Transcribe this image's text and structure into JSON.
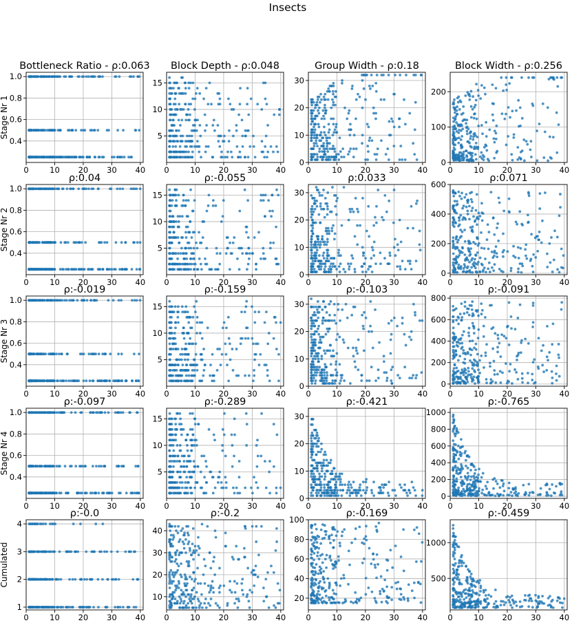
{
  "figure": {
    "suptitle": "Insects",
    "point_color": "#1f77b4"
  },
  "chart_data": {
    "type": "scatter",
    "note_x_axis": "shared x axis across all 20 panels; x values unlabeled on the figure",
    "columns": [
      "Bottleneck Ratio",
      "Block Depth",
      "Group Width",
      "Block Width"
    ],
    "rows": [
      "Stage Nr 1",
      "Stage Nr 2",
      "Stage Nr 3",
      "Stage Nr 4",
      "Cumulated"
    ],
    "xlim": [
      0,
      41
    ],
    "xticks": [
      0,
      10,
      20,
      30,
      40
    ],
    "panels": [
      {
        "title": "Bottleneck Ratio - ρ:0.063",
        "ylabel": "Stage Nr 1",
        "ylim": [
          0.2,
          1.04
        ],
        "yticks": [
          0.4,
          0.6,
          0.8,
          1.0
        ],
        "ytick_labels": [
          "0.4",
          "0.6",
          "0.8",
          "1.0"
        ],
        "ylevels": [
          0.25,
          0.5,
          1.0
        ],
        "rho": 0.063
      },
      {
        "title": "Block Depth - ρ:0.048",
        "ylabel": "",
        "ylim": [
          0,
          17
        ],
        "yticks": [
          5,
          10,
          15
        ],
        "ytick_labels": [
          "5",
          "10",
          "15"
        ],
        "ymin_data": 1,
        "ymax_data": 16,
        "rho": 0.048
      },
      {
        "title": "Group Width - ρ:0.18",
        "ylabel": "",
        "ylim": [
          0,
          33
        ],
        "yticks": [
          0,
          10,
          20,
          30
        ],
        "ytick_labels": [
          "0",
          "10",
          "20",
          "30"
        ],
        "ymin_data": 1,
        "ymax_data": 32,
        "rho": 0.18
      },
      {
        "title": "Block Width - ρ:0.256",
        "ylabel": "",
        "ylim": [
          0,
          255
        ],
        "yticks": [
          0,
          100,
          200
        ],
        "ytick_labels": [
          "0",
          "100",
          "200"
        ],
        "ymin_data": 5,
        "ymax_data": 240,
        "rho": 0.256
      },
      {
        "title": "ρ:0.04",
        "ylabel": "Stage Nr 2",
        "ylim": [
          0.2,
          1.04
        ],
        "yticks": [
          0.4,
          0.6,
          0.8,
          1.0
        ],
        "ytick_labels": [
          "0.4",
          "0.6",
          "0.8",
          "1.0"
        ],
        "ylevels": [
          0.25,
          0.5,
          1.0
        ],
        "rho": 0.04
      },
      {
        "title": "ρ:-0.055",
        "ylabel": "",
        "ylim": [
          0,
          17
        ],
        "yticks": [
          5,
          10,
          15
        ],
        "ytick_labels": [
          "5",
          "10",
          "15"
        ],
        "ymin_data": 1,
        "ymax_data": 16,
        "rho": -0.055
      },
      {
        "title": "ρ:0.033",
        "ylabel": "",
        "ylim": [
          0,
          33
        ],
        "yticks": [
          0,
          10,
          20,
          30
        ],
        "ytick_labels": [
          "0",
          "10",
          "20",
          "30"
        ],
        "ymin_data": 1,
        "ymax_data": 32,
        "rho": 0.033
      },
      {
        "title": "ρ:0.071",
        "ylabel": "",
        "ylim": [
          -10,
          600
        ],
        "yticks": [
          0,
          200,
          400,
          600
        ],
        "ytick_labels": [
          "0",
          "200",
          "400",
          "600"
        ],
        "ymin_data": 5,
        "ymax_data": 560,
        "rho": 0.071
      },
      {
        "title": "ρ:-0.019",
        "ylabel": "Stage Nr 3",
        "ylim": [
          0.2,
          1.04
        ],
        "yticks": [
          0.4,
          0.6,
          0.8,
          1.0
        ],
        "ytick_labels": [
          "0.4",
          "0.6",
          "0.8",
          "1.0"
        ],
        "ylevels": [
          0.25,
          0.5,
          1.0
        ],
        "rho": -0.019
      },
      {
        "title": "ρ:-0.159",
        "ylabel": "",
        "ylim": [
          0,
          17
        ],
        "yticks": [
          5,
          10,
          15
        ],
        "ytick_labels": [
          "5",
          "10",
          "15"
        ],
        "ymin_data": 1,
        "ymax_data": 16,
        "rho": -0.159
      },
      {
        "title": "ρ:-0.103",
        "ylabel": "",
        "ylim": [
          0,
          33
        ],
        "yticks": [
          0,
          10,
          20,
          30
        ],
        "ytick_labels": [
          "0",
          "10",
          "20",
          "30"
        ],
        "ymin_data": 1,
        "ymax_data": 32,
        "rho": -0.103
      },
      {
        "title": "ρ:-0.091",
        "ylabel": "",
        "ylim": [
          -20,
          820
        ],
        "yticks": [
          0,
          200,
          400,
          600,
          800
        ],
        "ytick_labels": [
          "0",
          "200",
          "400",
          "600",
          "800"
        ],
        "ymin_data": 5,
        "ymax_data": 780,
        "rho": -0.091
      },
      {
        "title": "ρ:-0.097",
        "ylabel": "Stage Nr 4",
        "ylim": [
          0.2,
          1.04
        ],
        "yticks": [
          0.4,
          0.6,
          0.8,
          1.0
        ],
        "ytick_labels": [
          "0.4",
          "0.6",
          "0.8",
          "1.0"
        ],
        "ylevels": [
          0.25,
          0.5,
          1.0
        ],
        "rho": -0.097
      },
      {
        "title": "ρ:-0.289",
        "ylabel": "",
        "ylim": [
          0,
          17
        ],
        "yticks": [
          5,
          10,
          15
        ],
        "ytick_labels": [
          "5",
          "10",
          "15"
        ],
        "ymin_data": 1,
        "ymax_data": 16,
        "rho": -0.289
      },
      {
        "title": "ρ:-0.421",
        "ylabel": "",
        "ylim": [
          0,
          33
        ],
        "yticks": [
          0,
          10,
          20,
          30
        ],
        "ytick_labels": [
          "0",
          "10",
          "20",
          "30"
        ],
        "ymin_data": 1,
        "ymax_data": 32,
        "rho": -0.421
      },
      {
        "title": "ρ:-0.765",
        "ylabel": "",
        "ylim": [
          -25,
          1050
        ],
        "yticks": [
          0,
          200,
          400,
          600,
          800,
          1000
        ],
        "ytick_labels": [
          "0",
          "200",
          "400",
          "600",
          "800",
          "1000"
        ],
        "ymin_data": 5,
        "ymax_data": 1010,
        "rho": -0.765
      },
      {
        "title": "ρ:-0.0",
        "ylabel": "Cumulated",
        "ylim": [
          0.9,
          4.15
        ],
        "yticks": [
          1,
          2,
          3,
          4
        ],
        "ytick_labels": [
          "1",
          "2",
          "3",
          "4"
        ],
        "ymin_data": 1,
        "ymax_data": 4,
        "rho": 0.0
      },
      {
        "title": "ρ:-0.2",
        "ylabel": "",
        "ylim": [
          4,
          45
        ],
        "yticks": [
          10,
          20,
          30,
          40
        ],
        "ytick_labels": [
          "10",
          "20",
          "30",
          "40"
        ],
        "ymin_data": 5,
        "ymax_data": 43,
        "rho": -0.2
      },
      {
        "title": "ρ:-0.169",
        "ylabel": "",
        "ylim": [
          8,
          100
        ],
        "yticks": [
          20,
          40,
          60,
          80,
          100
        ],
        "ytick_labels": [
          "20",
          "40",
          "60",
          "80",
          "100"
        ],
        "ymin_data": 15,
        "ymax_data": 97,
        "rho": -0.169
      },
      {
        "title": "ρ:-0.459",
        "ylabel": "",
        "ylim": [
          60,
          1320
        ],
        "yticks": [
          500,
          1000
        ],
        "ytick_labels": [
          "500",
          "1000"
        ],
        "ymin_data": 90,
        "ymax_data": 1280,
        "rho": -0.459
      }
    ]
  }
}
